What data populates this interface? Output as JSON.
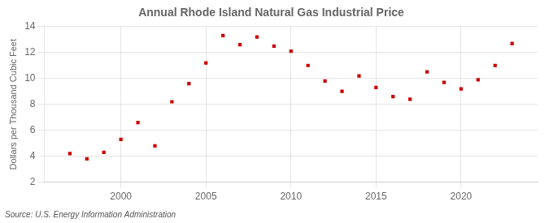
{
  "chart_data": {
    "type": "scatter",
    "title": "Annual Rhode Island Natural Gas Industrial Price",
    "ylabel": "Dollars per Thousand Cubic Feet",
    "annotation": "Source: U.S. Energy Information Administration",
    "x": [
      1997,
      1998,
      1999,
      2000,
      2001,
      2002,
      2003,
      2004,
      2005,
      2006,
      2007,
      2008,
      2009,
      2010,
      2011,
      2012,
      2013,
      2014,
      2015,
      2016,
      2017,
      2018,
      2019,
      2020,
      2021,
      2022,
      2023
    ],
    "values": [
      4.2,
      3.8,
      4.3,
      5.3,
      6.6,
      4.8,
      8.2,
      9.6,
      11.2,
      13.3,
      12.6,
      13.2,
      12.5,
      12.1,
      11.0,
      9.8,
      9.0,
      10.2,
      9.3,
      8.6,
      8.4,
      10.5,
      9.7,
      9.2,
      9.9,
      11.0,
      12.7
    ],
    "color": "#cc0000",
    "marker": "square",
    "xlim": [
      1995.5,
      2024.5
    ],
    "xticks": [
      2000,
      2005,
      2010,
      2015,
      2020
    ],
    "ylim": [
      2,
      14
    ],
    "yticks": [
      2,
      4,
      6,
      8,
      10,
      12,
      14
    ],
    "grid": true
  }
}
